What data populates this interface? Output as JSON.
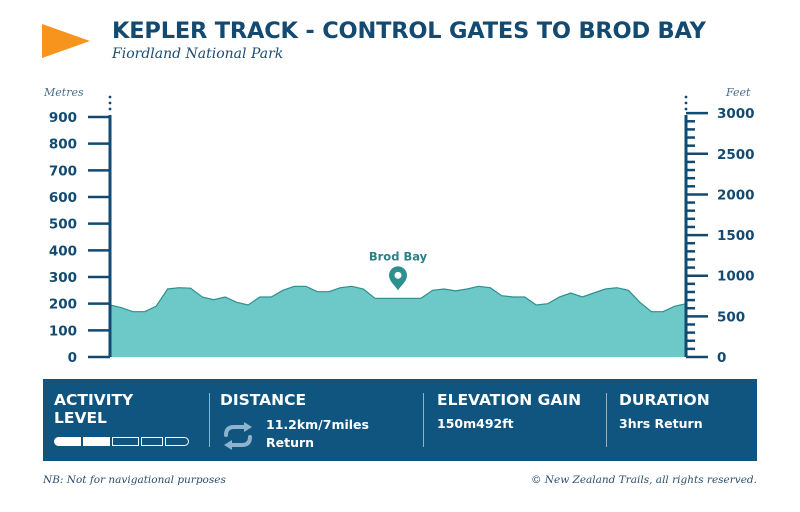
{
  "header": {
    "title": "KEPLER TRACK - CONTROL GATES TO BROD BAY",
    "subtitle": "Fiordland National Park",
    "accent_color": "#f7941d",
    "title_color": "#134a72"
  },
  "axis_units": {
    "left": "Metres",
    "right": "Feet"
  },
  "chart_data": {
    "type": "area",
    "ylim": [
      0,
      900
    ],
    "y_ticks_metres": [
      0,
      100,
      200,
      300,
      400,
      500,
      600,
      700,
      800,
      900
    ],
    "y_ticks_feet": [
      0,
      500,
      1000,
      1500,
      2000,
      2500,
      3000
    ],
    "y_elevation_metres": [
      195,
      185,
      170,
      170,
      190,
      255,
      260,
      258,
      225,
      215,
      225,
      205,
      195,
      225,
      225,
      250,
      265,
      265,
      245,
      245,
      260,
      265,
      255,
      220,
      220,
      220,
      220,
      220,
      250,
      255,
      248,
      255,
      265,
      260,
      230,
      225,
      225,
      195,
      200,
      225,
      240,
      225,
      240,
      255,
      260,
      250,
      205,
      170,
      170,
      190,
      200
    ],
    "fill_color": "#6cc9c8",
    "line_color": "#2e8f8f",
    "marker": {
      "label": "Brod Bay",
      "index": 25
    }
  },
  "panel": {
    "background": "#0f5580",
    "activity_title_1": "ACTIVITY",
    "activity_title_2": "LEVEL",
    "activity_level": 2,
    "activity_max": 5,
    "distance_title": "DISTANCE",
    "distance_value": "11.2km/7miles",
    "distance_return": "Return",
    "distance_icon": "loop-arrows-icon",
    "elevation_title": "ELEVATION GAIN",
    "elevation_value": "150m492ft",
    "duration_title": "DURATION",
    "duration_value": "3hrs Return"
  },
  "footer": {
    "left": "NB: Not for navigational purposes",
    "right": "© New Zealand Trails, all rights reserved."
  }
}
